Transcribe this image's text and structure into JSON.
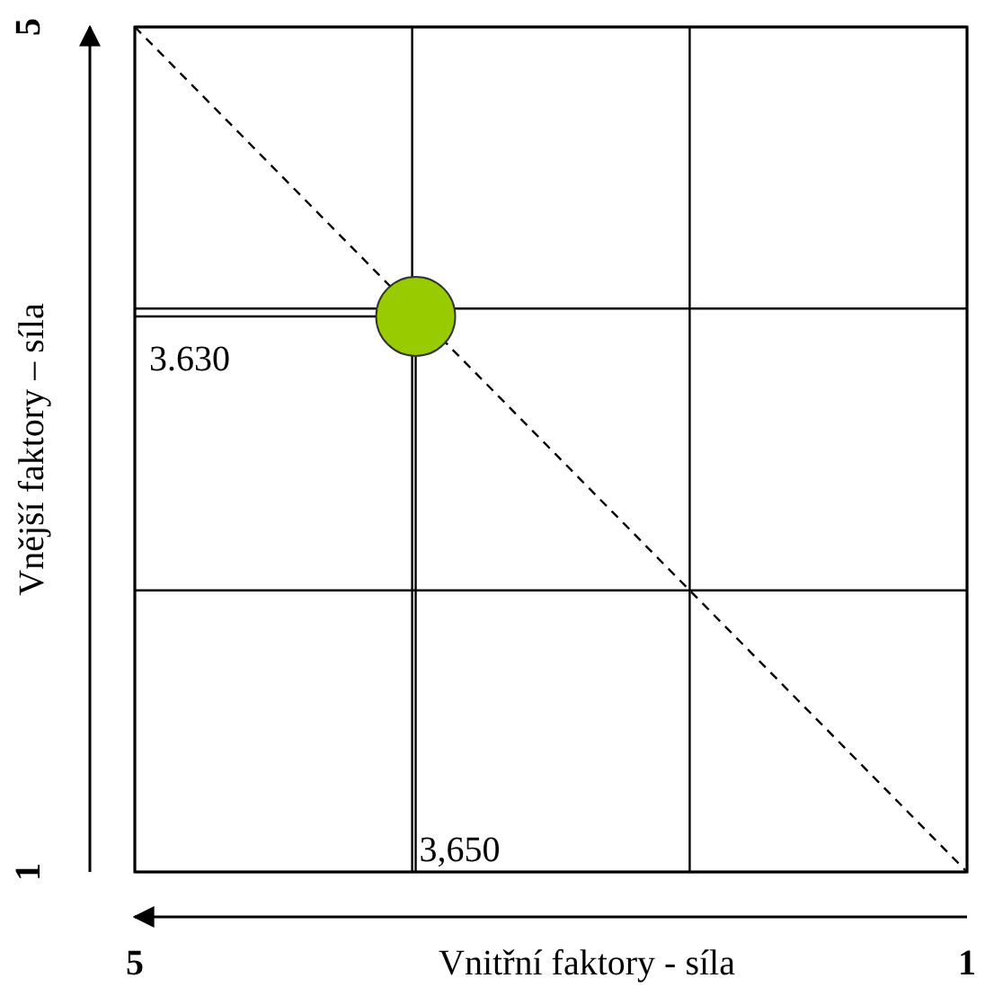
{
  "chart_data": {
    "type": "scatter",
    "xlabel": "Vnitřní  faktory - síla",
    "ylabel": "Vnější faktory – síla",
    "xlim": [
      5,
      1
    ],
    "ylim": [
      1,
      5
    ],
    "xticks": [
      5,
      {
        "value": 3.667,
        "label": null
      },
      {
        "value": 2.333,
        "label": null
      },
      1
    ],
    "yticks": [
      1,
      {
        "value": 2.333,
        "label": null
      },
      {
        "value": 3.667,
        "label": null
      },
      5
    ],
    "grid": true,
    "marker": "circle",
    "series": [
      {
        "type": "line",
        "x": [
          5,
          1
        ],
        "values": [
          5,
          1
        ],
        "color": "#000000",
        "line_style": "dashed",
        "marker": "none"
      },
      {
        "x": [
          3.65
        ],
        "values": [
          3.63
        ],
        "color": "#99cc00"
      }
    ],
    "annotations": [
      {
        "text": "3.630",
        "x": 3.65,
        "y": 3.63
      },
      {
        "text": "3,650",
        "x": 3.65,
        "y": 3.63
      }
    ]
  }
}
